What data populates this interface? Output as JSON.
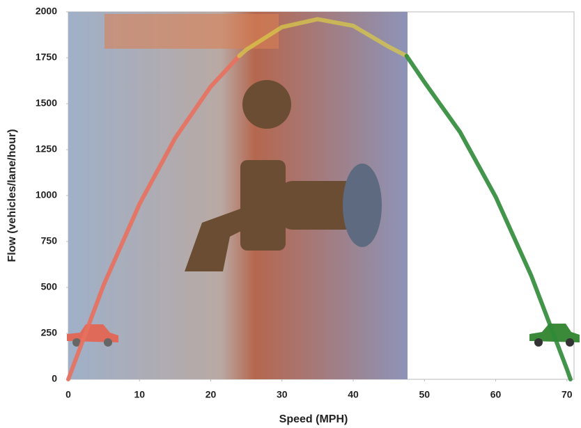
{
  "chart_data": {
    "type": "line",
    "xlabel": "Speed (MPH)",
    "ylabel": "Flow (vehicles/lane/hour)",
    "series": [
      {
        "color": "#e8705e",
        "x": [
          0,
          5,
          10,
          15,
          20,
          24
        ],
        "values": [
          0,
          516,
          954,
          1313,
          1593,
          1760
        ]
      },
      {
        "color": "#d8c84a",
        "x": [
          24,
          25,
          30,
          35,
          40,
          45,
          47.5
        ],
        "values": [
          1760,
          1794,
          1917,
          1960,
          1924,
          1810,
          1760
        ]
      },
      {
        "color": "#2f8a37",
        "x": [
          47.5,
          50,
          55,
          60,
          65,
          70,
          70.5
        ],
        "values": [
          1760,
          1617,
          1345,
          993,
          564,
          55,
          0
        ]
      }
    ],
    "xlim": [
      0,
      71
    ],
    "xticks": [
      0,
      10,
      20,
      30,
      40,
      50,
      60,
      70
    ],
    "ylim": [
      0,
      2000
    ],
    "yticks": [
      0,
      250,
      500,
      750,
      1000,
      1250,
      1500,
      1750,
      2000
    ]
  }
}
